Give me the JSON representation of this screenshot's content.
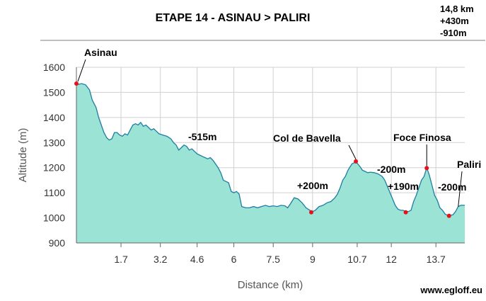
{
  "chart_data": {
    "type": "area",
    "title": "ETAPE 14 - ASINAU > PALIRI",
    "stats": [
      "14,8 km",
      "+430m",
      "-910m"
    ],
    "xlabel": "Distance (km)",
    "ylabel": "Altitude (m)",
    "x_ticks": [
      "1.7",
      "3.2",
      "4.6",
      "6",
      "7.5",
      "9",
      "10.7",
      "12",
      "13.7"
    ],
    "y_ticks": [
      "900",
      "1000",
      "1100",
      "1200",
      "1300",
      "1400",
      "1500",
      "1600"
    ],
    "xlim": [
      0.0,
      14.8
    ],
    "ylim": [
      900,
      1600
    ],
    "grid": true,
    "series": [
      {
        "points": [
          [
            0.0,
            1530
          ],
          [
            0.2,
            1535
          ],
          [
            0.35,
            1530
          ],
          [
            0.5,
            1510
          ],
          [
            0.6,
            1470
          ],
          [
            0.75,
            1440
          ],
          [
            0.85,
            1400
          ],
          [
            0.95,
            1370
          ],
          [
            1.05,
            1340
          ],
          [
            1.15,
            1320
          ],
          [
            1.25,
            1310
          ],
          [
            1.35,
            1315
          ],
          [
            1.45,
            1340
          ],
          [
            1.55,
            1340
          ],
          [
            1.65,
            1330
          ],
          [
            1.75,
            1325
          ],
          [
            1.85,
            1335
          ],
          [
            1.95,
            1330
          ],
          [
            2.05,
            1350
          ],
          [
            2.15,
            1370
          ],
          [
            2.25,
            1375
          ],
          [
            2.35,
            1370
          ],
          [
            2.45,
            1380
          ],
          [
            2.55,
            1365
          ],
          [
            2.65,
            1370
          ],
          [
            2.75,
            1360
          ],
          [
            2.85,
            1350
          ],
          [
            2.95,
            1355
          ],
          [
            3.05,
            1345
          ],
          [
            3.15,
            1335
          ],
          [
            3.3,
            1330
          ],
          [
            3.45,
            1325
          ],
          [
            3.6,
            1315
          ],
          [
            3.7,
            1300
          ],
          [
            3.8,
            1290
          ],
          [
            3.9,
            1270
          ],
          [
            4.0,
            1280
          ],
          [
            4.1,
            1290
          ],
          [
            4.2,
            1285
          ],
          [
            4.3,
            1270
          ],
          [
            4.4,
            1275
          ],
          [
            4.5,
            1265
          ],
          [
            4.6,
            1255
          ],
          [
            4.7,
            1250
          ],
          [
            4.8,
            1245
          ],
          [
            4.9,
            1240
          ],
          [
            5.0,
            1235
          ],
          [
            5.1,
            1240
          ],
          [
            5.2,
            1230
          ],
          [
            5.3,
            1215
          ],
          [
            5.4,
            1200
          ],
          [
            5.5,
            1180
          ],
          [
            5.6,
            1150
          ],
          [
            5.7,
            1145
          ],
          [
            5.8,
            1140
          ],
          [
            5.9,
            1105
          ],
          [
            6.0,
            1100
          ],
          [
            6.1,
            1105
          ],
          [
            6.2,
            1095
          ],
          [
            6.3,
            1045
          ],
          [
            6.45,
            1040
          ],
          [
            6.6,
            1040
          ],
          [
            6.75,
            1045
          ],
          [
            6.9,
            1040
          ],
          [
            7.05,
            1045
          ],
          [
            7.2,
            1050
          ],
          [
            7.35,
            1045
          ],
          [
            7.5,
            1048
          ],
          [
            7.65,
            1045
          ],
          [
            7.8,
            1050
          ],
          [
            7.95,
            1048
          ],
          [
            8.05,
            1040
          ],
          [
            8.15,
            1055
          ],
          [
            8.3,
            1080
          ],
          [
            8.45,
            1075
          ],
          [
            8.6,
            1060
          ],
          [
            8.75,
            1040
          ],
          [
            8.9,
            1030
          ],
          [
            9.0,
            1025
          ],
          [
            9.1,
            1030
          ],
          [
            9.25,
            1045
          ],
          [
            9.4,
            1050
          ],
          [
            9.55,
            1060
          ],
          [
            9.7,
            1065
          ],
          [
            9.85,
            1080
          ],
          [
            9.95,
            1095
          ],
          [
            10.05,
            1120
          ],
          [
            10.15,
            1150
          ],
          [
            10.25,
            1165
          ],
          [
            10.35,
            1190
          ],
          [
            10.5,
            1215
          ],
          [
            10.6,
            1220
          ],
          [
            10.7,
            1218
          ],
          [
            10.8,
            1205
          ],
          [
            10.9,
            1190
          ],
          [
            11.0,
            1185
          ],
          [
            11.1,
            1180
          ],
          [
            11.2,
            1182
          ],
          [
            11.35,
            1180
          ],
          [
            11.5,
            1175
          ],
          [
            11.65,
            1165
          ],
          [
            11.75,
            1150
          ],
          [
            11.85,
            1125
          ],
          [
            11.95,
            1100
          ],
          [
            12.05,
            1075
          ],
          [
            12.15,
            1050
          ],
          [
            12.25,
            1035
          ],
          [
            12.35,
            1030
          ],
          [
            12.45,
            1030
          ],
          [
            12.55,
            1025
          ],
          [
            12.65,
            1025
          ],
          [
            12.75,
            1030
          ],
          [
            12.85,
            1065
          ],
          [
            12.95,
            1090
          ],
          [
            13.05,
            1120
          ],
          [
            13.15,
            1150
          ],
          [
            13.25,
            1165
          ],
          [
            13.35,
            1200
          ],
          [
            13.45,
            1170
          ],
          [
            13.55,
            1130
          ],
          [
            13.65,
            1090
          ],
          [
            13.75,
            1070
          ],
          [
            13.85,
            1040
          ],
          [
            13.95,
            1030
          ],
          [
            14.05,
            1015
          ],
          [
            14.15,
            1010
          ],
          [
            14.25,
            1010
          ],
          [
            14.35,
            1012
          ],
          [
            14.45,
            1025
          ],
          [
            14.55,
            1045
          ],
          [
            14.65,
            1050
          ],
          [
            14.8,
            1050
          ]
        ]
      }
    ],
    "markers": [
      {
        "x": 0.0,
        "y": 1535,
        "label": "Asinau"
      },
      {
        "x": 8.95,
        "y": 1022,
        "label": ""
      },
      {
        "x": 10.65,
        "y": 1225,
        "label": "Col de Bavella"
      },
      {
        "x": 12.55,
        "y": 1022,
        "label": ""
      },
      {
        "x": 13.35,
        "y": 1198,
        "label": "Foce Finosa"
      },
      {
        "x": 14.2,
        "y": 1008,
        "label": ""
      }
    ],
    "annotations": [
      "-515m",
      "+200m",
      "-200m",
      "+190m",
      "-200m",
      "Paliri"
    ],
    "colors": {
      "fill": "#9be3d4",
      "line": "#1d7ea2",
      "marker": "#e8111a",
      "grid": "#d0d0d0"
    }
  },
  "credit": "www.egloff.eu"
}
